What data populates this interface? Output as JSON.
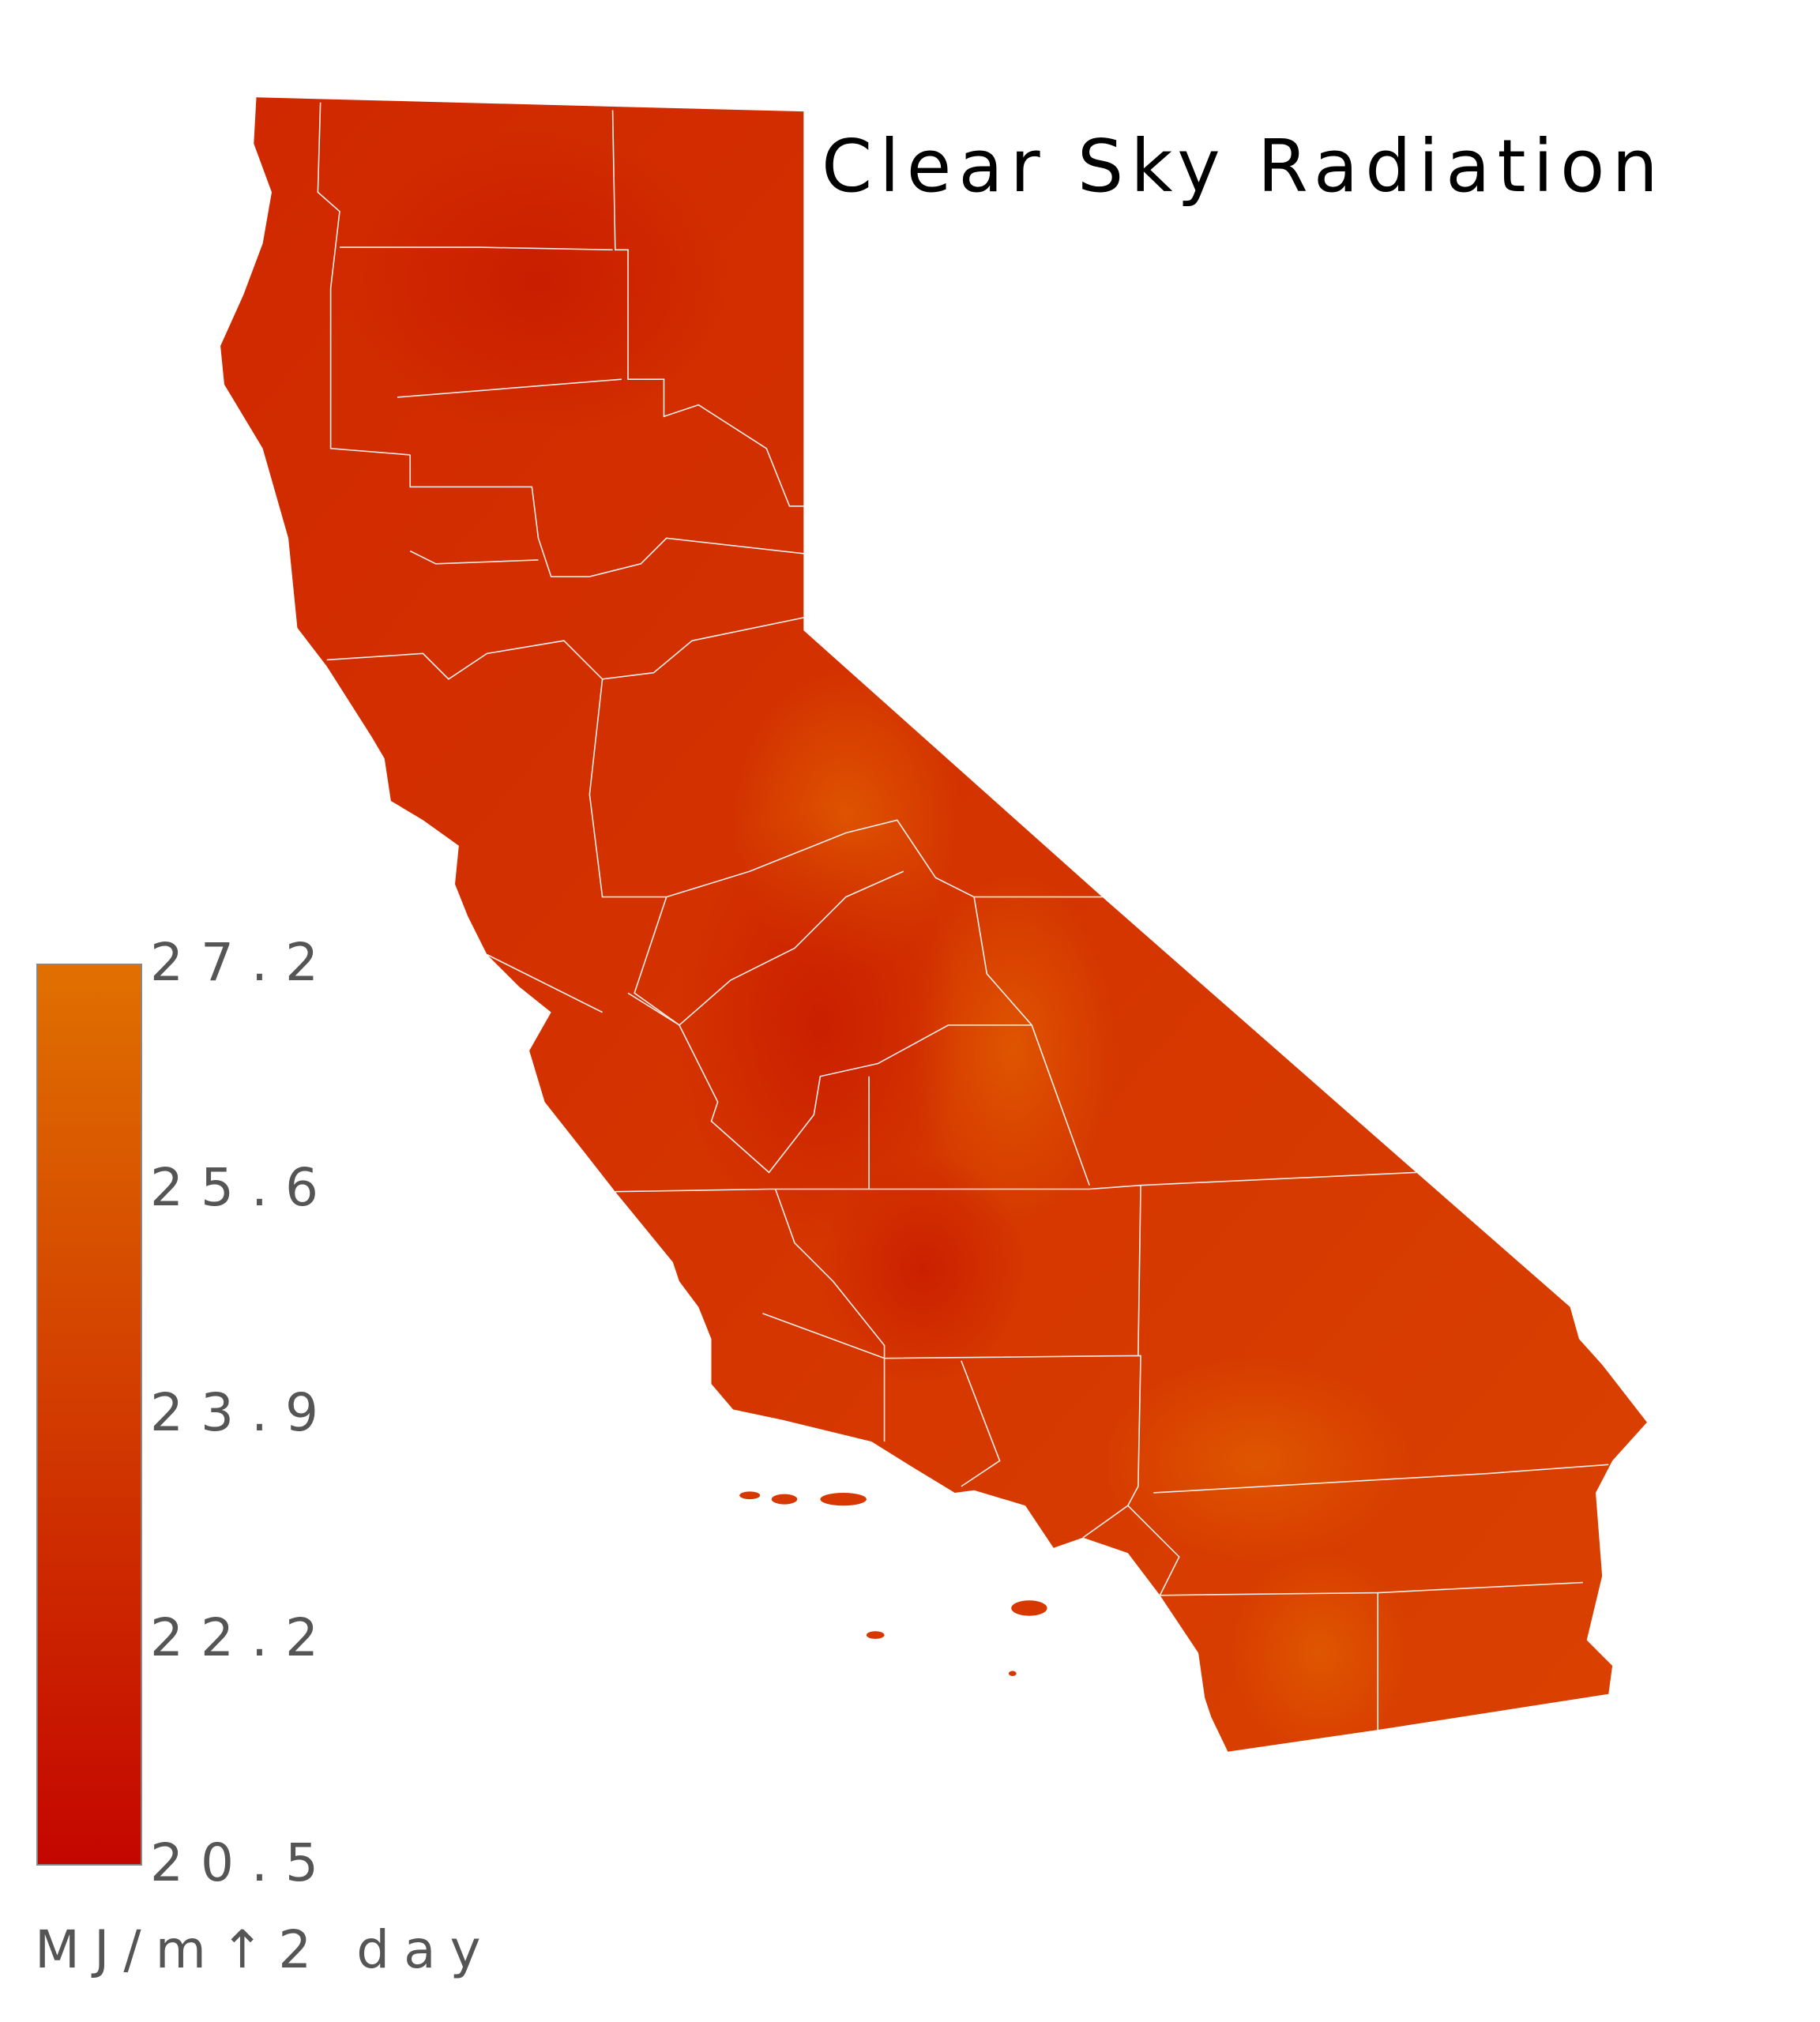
{
  "title": "Clear Sky Radiation",
  "legend": {
    "ticks": [
      "27.2",
      "25.6",
      "23.9",
      "22.2",
      "20.5"
    ],
    "min": 20.5,
    "max": 27.2,
    "unit": "MJ/m↑2 day",
    "color_low": "#c40600",
    "color_high": "#e07000"
  },
  "map": {
    "region": "California",
    "boundaries": "counties",
    "boundary_color": "#ffffff",
    "typical_fill": "#d63c00"
  }
}
